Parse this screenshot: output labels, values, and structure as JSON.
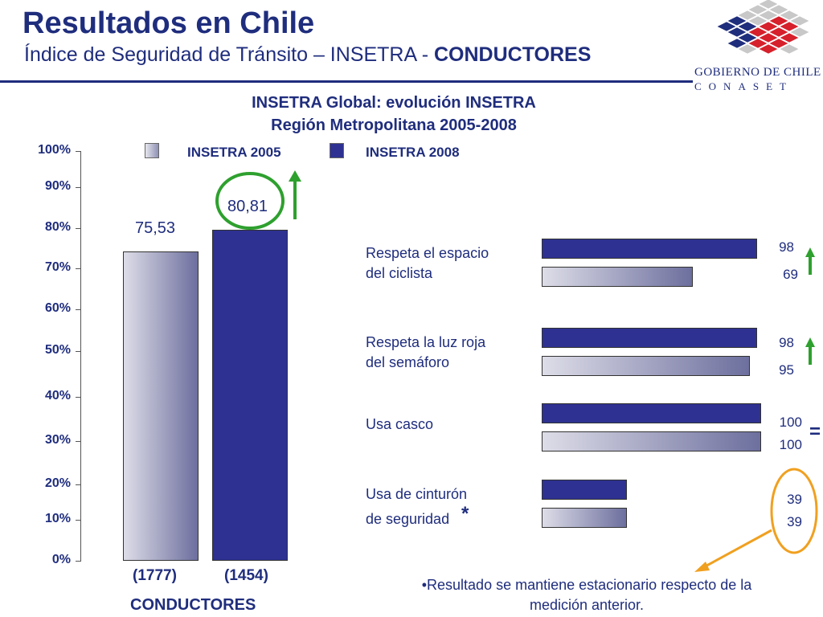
{
  "header": {
    "title": "Resultados en Chile",
    "subtitle_prefix": "Índice de Seguridad de Tránsito – INSETRA  - ",
    "subtitle_bold": "CONDUCTORES"
  },
  "logo": {
    "line1": "GOBIERNO DE CHILE",
    "line2": "CONASET",
    "colors": [
      "#1f2d7d",
      "#d6202b",
      "#c8c8c8"
    ]
  },
  "chart_data": {
    "type": "bar",
    "title_line1": "INSETRA Global: evolución INSETRA",
    "title_line2": "Región Metropolitana 2005-2008",
    "legend": [
      "INSETRA 2005",
      "INSETRA 2008"
    ],
    "colors": {
      "INSETRA 2005": "#b3b4cf",
      "INSETRA 2008": "#2e3191"
    },
    "yticks": [
      "0%",
      "10%",
      "20%",
      "30%",
      "40%",
      "50%",
      "60%",
      "70%",
      "80%",
      "90%",
      "100%"
    ],
    "ylim": [
      0,
      100
    ],
    "xlabel": "CONDUCTORES",
    "global": {
      "categories": [
        "(1777)",
        "(1454)"
      ],
      "series": [
        {
          "name": "INSETRA 2005",
          "value": 75.53,
          "label": "75,53"
        },
        {
          "name": "INSETRA 2008",
          "value": 80.81,
          "label": "80,81"
        }
      ]
    },
    "items": [
      {
        "label_line1": "Respeta el espacio",
        "label_line2": "del ciclista",
        "star": "",
        "v2008": 98,
        "v2005": 69,
        "indicator": "up"
      },
      {
        "label_line1": "Respeta la luz roja",
        "label_line2": "del semáforo",
        "star": "",
        "v2008": 98,
        "v2005": 95,
        "indicator": "up"
      },
      {
        "label_line1": "Usa casco",
        "label_line2": "",
        "star": "",
        "v2008": 100,
        "v2005": 100,
        "indicator": "equal"
      },
      {
        "label_line1": "Usa de cinturón",
        "label_line2": "de seguridad",
        "star": "*",
        "v2008": 39,
        "v2005": 39,
        "indicator": "circle"
      }
    ],
    "equal_sign": "=",
    "note": "•Resultado se mantiene estacionario respecto de la medición anterior."
  }
}
